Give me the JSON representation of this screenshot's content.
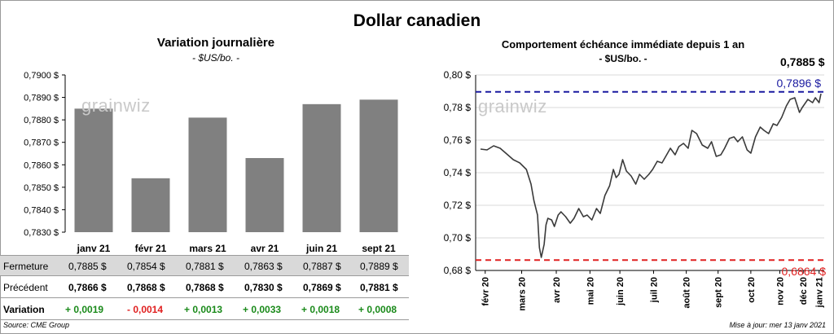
{
  "title": "Dollar canadien",
  "left_chart": {
    "title": "Variation  journalière",
    "subtitle": "- $US/bo. -",
    "watermark": "grainwiz"
  },
  "right_chart": {
    "title": "Comportement échéance immédiate depuis 1 an",
    "subtitle": "- $US/bo. -",
    "last_value_label": "0,7885 $",
    "high_label": "0,7896 $",
    "low_label": "0,6864 $",
    "watermark": "grainwiz"
  },
  "table": {
    "row_labels": [
      "Fermeture",
      "Précédent",
      "Variation"
    ],
    "fermeture": [
      "0,7885 $",
      "0,7854 $",
      "0,7881 $",
      "0,7863 $",
      "0,7887 $",
      "0,7889 $"
    ],
    "precedent": [
      "0,7866 $",
      "0,7868 $",
      "0,7868 $",
      "0,7830 $",
      "0,7869 $",
      "0,7881 $"
    ],
    "variation": [
      "+ 0,0019",
      "- 0,0014",
      "+ 0,0013",
      "+ 0,0033",
      "+ 0,0018",
      "+ 0,0008"
    ]
  },
  "footer": {
    "source": "Source: CME Group",
    "updated": "Mise à jour: mer 13 janv 2021"
  },
  "colors": {
    "bar": "#808080",
    "line": "#3a3a3a",
    "high_line": "#1a1aa0",
    "low_line": "#e02020",
    "positive": "#1a8a1a",
    "negative": "#e02020"
  },
  "chart_data": [
    {
      "type": "bar",
      "title": "Variation  journalière",
      "subtitle": "- $US/bo. -",
      "categories": [
        "janv 21",
        "févr 21",
        "mars 21",
        "avr 21",
        "juin 21",
        "sept 21"
      ],
      "values": [
        0.7885,
        0.7854,
        0.7881,
        0.7863,
        0.7887,
        0.7889
      ],
      "ylim": [
        0.783,
        0.79
      ],
      "yticks": [
        "0,7830 $",
        "0,7840 $",
        "0,7850 $",
        "0,7860 $",
        "0,7870 $",
        "0,7880 $",
        "0,7890 $",
        "0,7900 $"
      ],
      "grid": false
    },
    {
      "type": "line",
      "title": "Comportement échéance immédiate depuis 1 an",
      "subtitle": "- $US/bo. -",
      "x": [
        "2020-01-15",
        "2020-01-22",
        "2020-01-29",
        "2020-02-05",
        "2020-02-12",
        "2020-02-19",
        "2020-02-26",
        "2020-03-04",
        "2020-03-09",
        "2020-03-12",
        "2020-03-16",
        "2020-03-18",
        "2020-03-20",
        "2020-03-23",
        "2020-03-25",
        "2020-03-27",
        "2020-03-31",
        "2020-04-03",
        "2020-04-07",
        "2020-04-10",
        "2020-04-15",
        "2020-04-20",
        "2020-04-24",
        "2020-04-29",
        "2020-05-04",
        "2020-05-08",
        "2020-05-13",
        "2020-05-18",
        "2020-05-22",
        "2020-05-27",
        "2020-06-01",
        "2020-06-05",
        "2020-06-08",
        "2020-06-11",
        "2020-06-15",
        "2020-06-19",
        "2020-06-24",
        "2020-06-29",
        "2020-07-03",
        "2020-07-08",
        "2020-07-13",
        "2020-07-17",
        "2020-07-22",
        "2020-07-27",
        "2020-07-31",
        "2020-08-05",
        "2020-08-10",
        "2020-08-14",
        "2020-08-19",
        "2020-08-24",
        "2020-08-28",
        "2020-09-02",
        "2020-09-08",
        "2020-09-14",
        "2020-09-18",
        "2020-09-23",
        "2020-09-28",
        "2020-10-02",
        "2020-10-07",
        "2020-10-12",
        "2020-10-16",
        "2020-10-21",
        "2020-10-26",
        "2020-10-30",
        "2020-11-04",
        "2020-11-09",
        "2020-11-13",
        "2020-11-18",
        "2020-11-23",
        "2020-11-27",
        "2020-12-02",
        "2020-12-07",
        "2020-12-11",
        "2020-12-16",
        "2020-12-21",
        "2020-12-24",
        "2020-12-30",
        "2021-01-04",
        "2021-01-07",
        "2021-01-11",
        "2021-01-13"
      ],
      "y": [
        0.7545,
        0.754,
        0.7565,
        0.755,
        0.7515,
        0.748,
        0.746,
        0.742,
        0.733,
        0.723,
        0.714,
        0.694,
        0.688,
        0.696,
        0.708,
        0.712,
        0.711,
        0.707,
        0.714,
        0.716,
        0.713,
        0.709,
        0.712,
        0.718,
        0.713,
        0.714,
        0.711,
        0.718,
        0.715,
        0.726,
        0.732,
        0.742,
        0.737,
        0.739,
        0.748,
        0.741,
        0.738,
        0.733,
        0.739,
        0.736,
        0.739,
        0.742,
        0.747,
        0.746,
        0.75,
        0.755,
        0.751,
        0.756,
        0.758,
        0.755,
        0.766,
        0.764,
        0.757,
        0.755,
        0.759,
        0.75,
        0.751,
        0.755,
        0.761,
        0.762,
        0.759,
        0.762,
        0.754,
        0.752,
        0.762,
        0.768,
        0.766,
        0.764,
        0.77,
        0.769,
        0.774,
        0.781,
        0.785,
        0.786,
        0.777,
        0.78,
        0.785,
        0.783,
        0.786,
        0.783,
        0.7885
      ],
      "xlabels": [
        "févr 20",
        "mars 20",
        "avr 20",
        "mai 20",
        "juin 20",
        "juil 20",
        "août 20",
        "sept 20",
        "oct 20",
        "nov 20",
        "déc 20",
        "janv 21"
      ],
      "xlabel_dates": [
        "2020-01-20",
        "2020-02-28",
        "2020-04-05",
        "2020-05-11",
        "2020-06-12",
        "2020-07-18",
        "2020-08-22",
        "2020-09-25",
        "2020-10-30",
        "2020-11-30",
        "2020-12-25",
        "2021-01-11"
      ],
      "ylim": [
        0.68,
        0.8
      ],
      "yticks": [
        "0,68 $",
        "0,70 $",
        "0,72 $",
        "0,74 $",
        "0,76 $",
        "0,78 $",
        "0,80 $"
      ],
      "high": 0.7896,
      "low": 0.6864,
      "grid": true
    }
  ]
}
